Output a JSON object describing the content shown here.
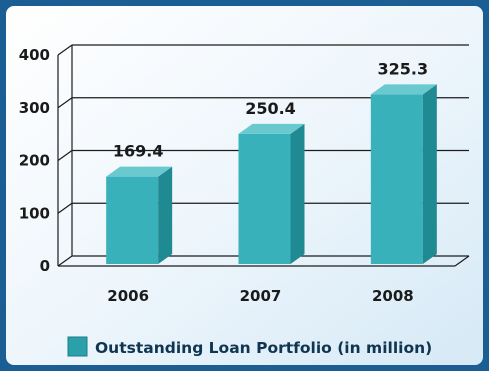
{
  "chart_data": {
    "type": "bar",
    "categories": [
      "2006",
      "2007",
      "2008"
    ],
    "series": [
      {
        "name": "Outstanding Loan Portfolio (in million)",
        "values": [
          169.4,
          250.4,
          325.3
        ]
      }
    ],
    "data_labels": [
      "169.4",
      "250.4",
      "325.3"
    ],
    "y_ticks": [
      "0",
      "100",
      "200",
      "300",
      "400"
    ],
    "ylim": [
      0,
      400
    ],
    "grid": true,
    "legend_position": "bottom",
    "three_d": true
  },
  "colors": {
    "background_outer": "#1a5e93",
    "background_inner": "#e6f2fa",
    "bar_front": "#38b1ba",
    "bar_side": "#208a92",
    "bar_top": "#6ac8cf",
    "gridline": "#1c1c1c",
    "legend_swatch": "#2aa0aa"
  }
}
